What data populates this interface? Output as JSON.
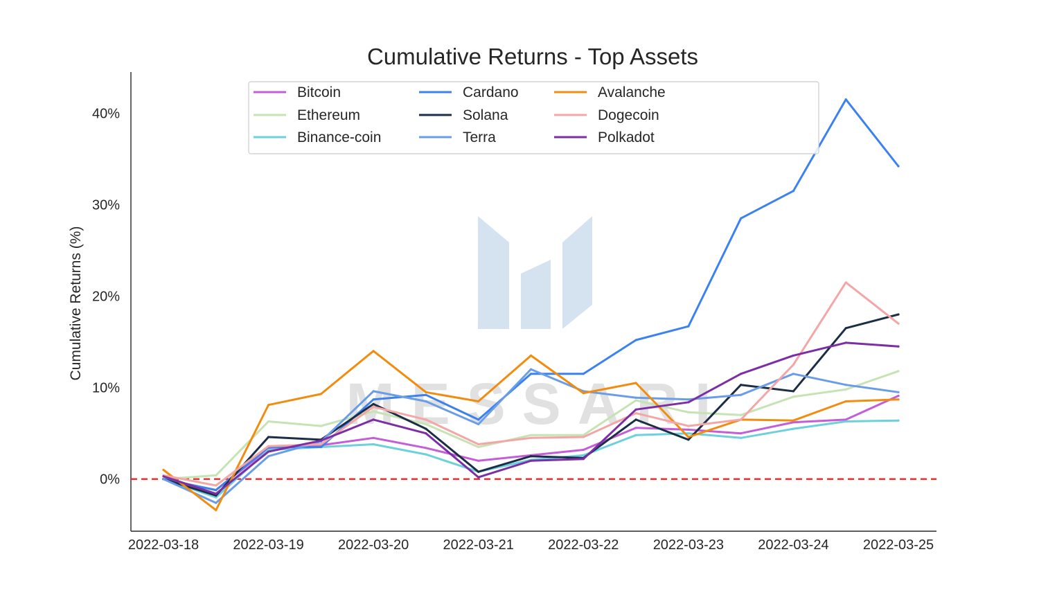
{
  "chart_data": {
    "type": "line",
    "title": "Cumulative Returns - Top Assets",
    "xlabel": "",
    "ylabel": "Cumulative Returns (%)",
    "x_ticks": [
      "2022-03-18",
      "2022-03-19",
      "2022-03-20",
      "2022-03-21",
      "2022-03-22",
      "2022-03-23",
      "2022-03-24",
      "2022-03-25"
    ],
    "y_ticks": [
      0,
      10,
      20,
      30,
      40
    ],
    "y_tick_labels": [
      "0%",
      "10%",
      "20%",
      "30%",
      "40%"
    ],
    "xlim": [
      "2022-03-18",
      "2022-03-25"
    ],
    "ylim": [
      -5.7,
      44.5
    ],
    "grid": false,
    "legend_position": "top-center",
    "legend_columns": 4,
    "reference_line": {
      "y": 0,
      "style": "dashed",
      "color": "#e8292a"
    },
    "watermark": "MESSARI",
    "x": [
      "2022-03-18",
      "2022-03-18 12:00",
      "2022-03-19",
      "2022-03-19 12:00",
      "2022-03-20",
      "2022-03-20 12:00",
      "2022-03-21",
      "2022-03-21 12:00",
      "2022-03-22",
      "2022-03-22 12:00",
      "2022-03-23",
      "2022-03-23 12:00",
      "2022-03-24",
      "2022-03-24 12:00",
      "2022-03-25"
    ],
    "series": [
      {
        "name": "Bitcoin",
        "color": "#c45dd8",
        "values": [
          0,
          -1.2,
          3.3,
          3.7,
          4.5,
          3.4,
          2.0,
          2.6,
          3.2,
          5.6,
          5.4,
          5.0,
          6.2,
          6.5,
          9.1
        ]
      },
      {
        "name": "Ethereum",
        "color": "#c6e3b4",
        "values": [
          0,
          0.4,
          6.3,
          5.8,
          7.4,
          6.0,
          3.5,
          4.8,
          4.8,
          8.6,
          7.3,
          7.0,
          9.0,
          9.8,
          11.8
        ]
      },
      {
        "name": "Binance-coin",
        "color": "#6dd0da",
        "values": [
          0,
          -2.0,
          3.2,
          3.5,
          3.8,
          2.7,
          0.8,
          2.1,
          2.6,
          4.8,
          5.0,
          4.5,
          5.5,
          6.3,
          6.4
        ]
      },
      {
        "name": "Cardano",
        "color": "#3b82f0",
        "values": [
          0,
          -1.2,
          3.5,
          3.5,
          8.7,
          9.2,
          6.5,
          11.5,
          11.5,
          15.2,
          16.7,
          28.5,
          31.5,
          41.5,
          34.2
        ]
      },
      {
        "name": "Solana",
        "color": "#1c2e47",
        "values": [
          0,
          -1.8,
          4.6,
          4.3,
          8.2,
          5.5,
          0.8,
          2.5,
          2.3,
          6.5,
          4.3,
          10.3,
          9.6,
          16.5,
          18.0
        ]
      },
      {
        "name": "Terra",
        "color": "#6a9de8",
        "values": [
          0,
          -2.6,
          2.5,
          4.1,
          9.6,
          8.5,
          6.0,
          12.0,
          9.6,
          8.9,
          8.7,
          9.2,
          11.5,
          10.3,
          9.5
        ]
      },
      {
        "name": "Avalanche",
        "color": "#f28c0f",
        "values": [
          1.0,
          -3.4,
          8.1,
          9.3,
          14.0,
          9.5,
          8.5,
          13.5,
          9.4,
          10.5,
          4.6,
          6.5,
          6.4,
          8.5,
          8.7
        ]
      },
      {
        "name": "Dogecoin",
        "color": "#f4a6a6",
        "values": [
          0.4,
          -0.7,
          3.6,
          3.8,
          7.9,
          6.5,
          3.8,
          4.5,
          4.6,
          7.2,
          5.8,
          6.5,
          12.5,
          21.5,
          17.0
        ]
      },
      {
        "name": "Polkadot",
        "color": "#7b2ea5",
        "values": [
          0.3,
          -1.6,
          3.0,
          4.2,
          6.5,
          5.0,
          0.2,
          2.0,
          2.2,
          7.6,
          8.4,
          11.5,
          13.5,
          14.9,
          14.5
        ]
      }
    ]
  }
}
